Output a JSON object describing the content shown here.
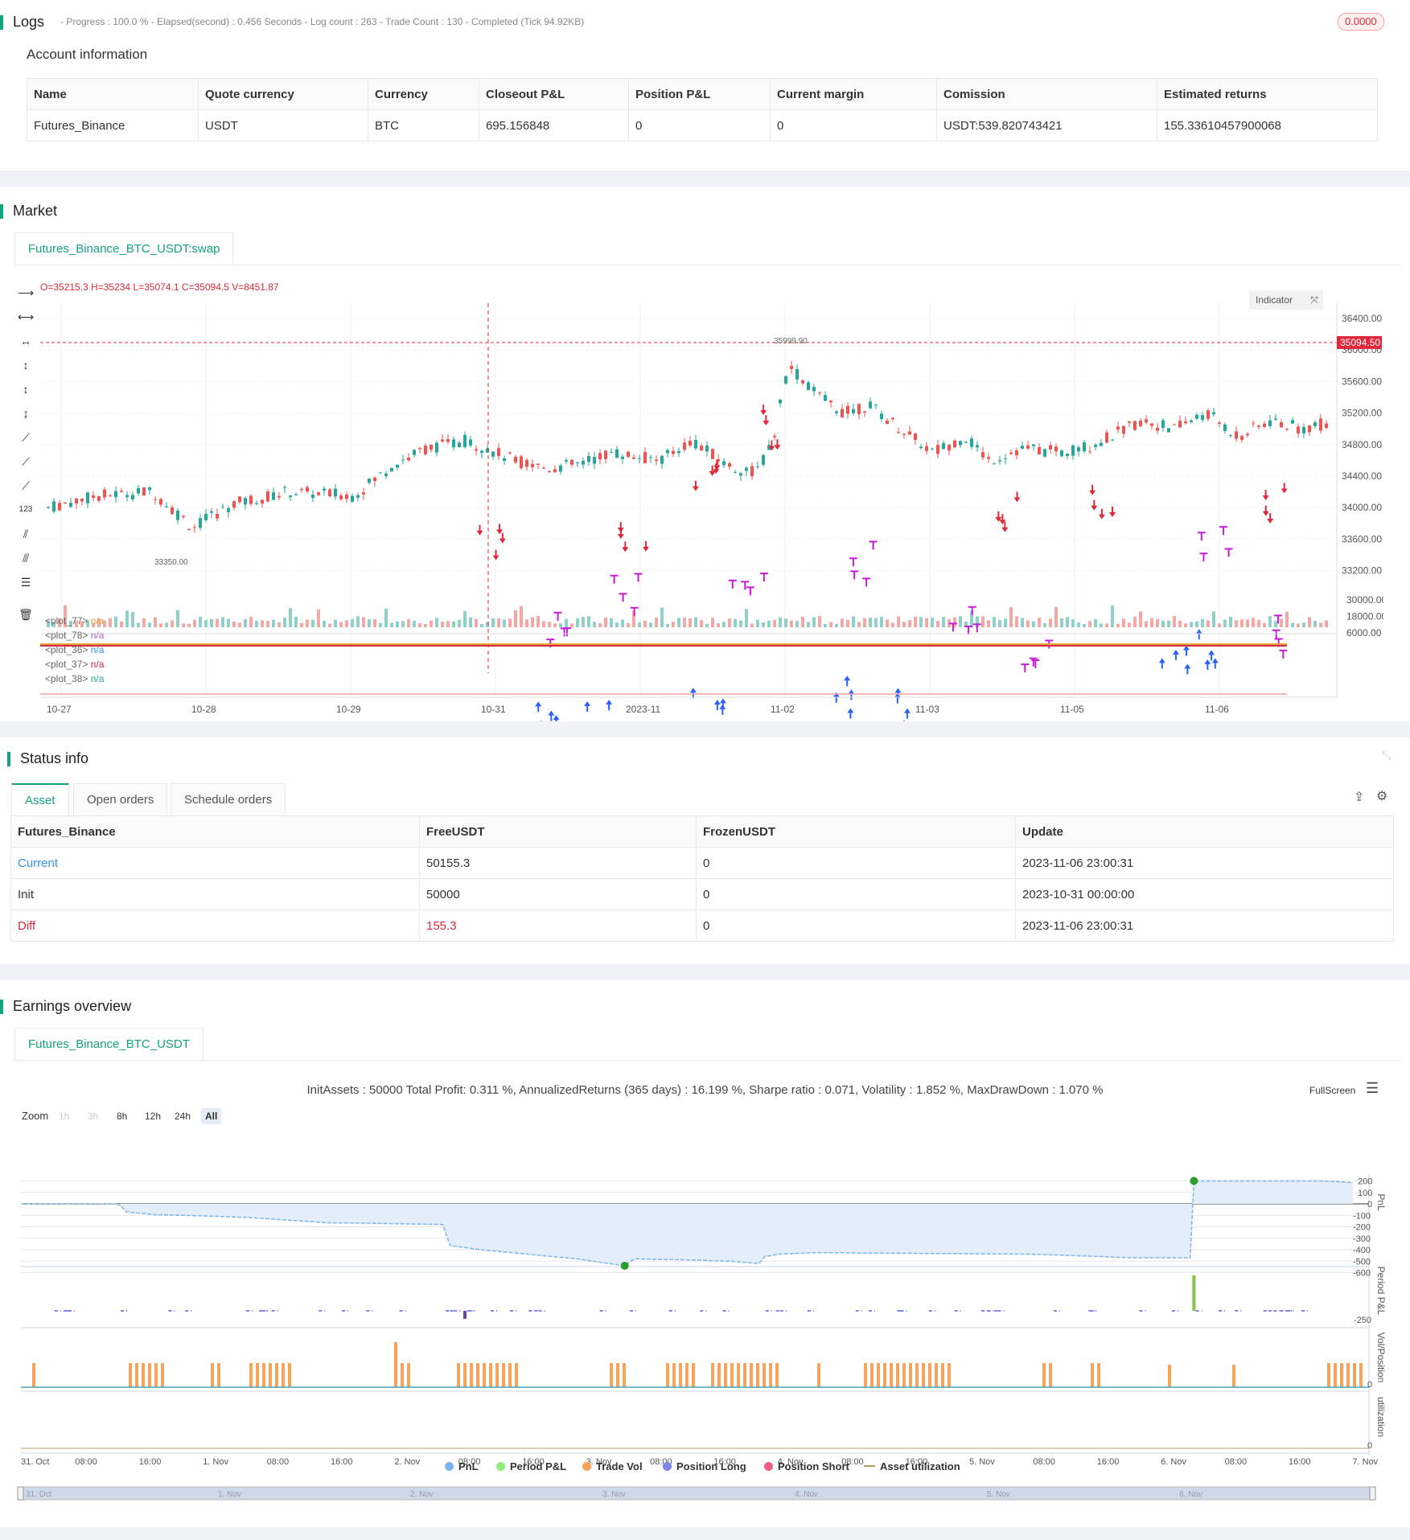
{
  "logs": {
    "title": "Logs",
    "summary": "- Progress : 100.0 % - Elapsed(second) : 0.456  Seconds - Log count : 263 - Trade Count : 130 - Completed (Tick 94.92KB)",
    "badge": "0.0000",
    "account_title": "Account information",
    "columns": [
      "Name",
      "Quote currency",
      "Currency",
      "Closeout P&L",
      "Position P&L",
      "Current margin",
      "Comission",
      "Estimated returns"
    ],
    "row": [
      "Futures_Binance",
      "USDT",
      "BTC",
      "695.156848",
      "0",
      "0",
      "USDT:539.820743421",
      "155.33610457900068"
    ]
  },
  "market": {
    "title": "Market",
    "symbol_tab": "Futures_Binance_BTC_USDT:swap",
    "ohlc": "O=35215.3 H=35234 L=35074.1 C=35094.5 V=8451.87",
    "indicator_btn": "Indicator",
    "last_price": "35094.50",
    "high_label": "35999.90",
    "low_label": "33350.00",
    "price_ticks": [
      "36400.00",
      "36000.00",
      "35600.00",
      "35200.00",
      "34800.00",
      "34400.00",
      "34000.00",
      "33600.00",
      "33200.00"
    ],
    "sub_ticks": [
      "30000.00",
      "18000.00",
      "6000.00"
    ],
    "time_ticks": [
      "10-27",
      "10-28",
      "10-29",
      "10-31",
      "2023-11",
      "11-02",
      "11-03",
      "11-05",
      "11-06"
    ],
    "plots": [
      {
        "name": "<plot_77>",
        "value": "n/a",
        "color": "#e5a23a"
      },
      {
        "name": "<plot_78>",
        "value": "n/a",
        "color": "#b05fd1"
      },
      {
        "name": "<plot_36>",
        "value": "n/a",
        "color": "#3a8ee6"
      },
      {
        "name": "<plot_37>",
        "value": "n/a",
        "color": "#d6284b"
      },
      {
        "name": "<plot_38>",
        "value": "n/a",
        "color": "#26a69a"
      }
    ],
    "colors": {
      "up": "#26a69a",
      "down": "#ef5350",
      "long": "#2962ff",
      "short": "#e0283c",
      "close": "#c51ad6"
    }
  },
  "status": {
    "title": "Status info",
    "tabs": [
      "Asset",
      "Open orders",
      "Schedule orders"
    ],
    "columns": [
      "Futures_Binance",
      "FreeUSDT",
      "FrozenUSDT",
      "Update"
    ],
    "rows": [
      [
        "Current",
        "50155.3",
        "0",
        "2023-11-06 23:00:31"
      ],
      [
        "Init",
        "50000",
        "0",
        "2023-10-31 00:00:00"
      ],
      [
        "Diff",
        "155.3",
        "0",
        "2023-11-06 23:00:31"
      ]
    ]
  },
  "earnings": {
    "title": "Earnings overview",
    "symbol_tab": "Futures_Binance_BTC_USDT",
    "summary": "InitAssets : 50000 Total Profit: 0.311 %, AnnualizedReturns (365 days) : 16.199 %, Sharpe ratio : 0.071, Volatility : 1.852 %, MaxDrawDown : 1.070 %",
    "fullscreen": "FullScreen",
    "zoom_label": "Zoom",
    "zoom_buttons": [
      "1h",
      "3h",
      "8h",
      "12h",
      "24h",
      "All"
    ],
    "pnl_ticks": [
      "200",
      "100",
      "0",
      "-100",
      "-200",
      "-300",
      "-400",
      "-500",
      "-600"
    ],
    "period_tick": "-250",
    "zero_tick": "0",
    "panel_labels": [
      "PnL",
      "Period P&L",
      "Vol/Position",
      "utilization"
    ],
    "x_ticks": [
      "31. Oct",
      "08:00",
      "16:00",
      "1. Nov",
      "08:00",
      "16:00",
      "2. Nov",
      "08:00",
      "16:00",
      "3. Nov",
      "08:00",
      "16:00",
      "4. Nov",
      "08:00",
      "16:00",
      "5. Nov",
      "08:00",
      "16:00",
      "6. Nov",
      "08:00",
      "16:00",
      "7. Nov"
    ],
    "nav_ticks": [
      "31. Oct",
      "1. Nov",
      "2. Nov",
      "3. Nov",
      "4. Nov",
      "5. Nov",
      "6. Nov"
    ],
    "legend": [
      {
        "label": "PnL",
        "color": "#7cb5ec"
      },
      {
        "label": "Period P&L",
        "color": "#90ed7d"
      },
      {
        "label": "Trade Vol",
        "color": "#f7a35c"
      },
      {
        "label": "Position Long",
        "color": "#8085e9"
      },
      {
        "label": "Position Short",
        "color": "#f15c80"
      },
      {
        "label": "Asset utilization",
        "color": "#a8a060"
      }
    ],
    "chart_data": {
      "type": "area",
      "title": "",
      "ylabel": "PnL",
      "ylim": [
        -600,
        200
      ],
      "x": [
        "31. Oct",
        "1. Nov",
        "2. Nov",
        "3. Nov",
        "4. Nov",
        "5. Nov",
        "6. Nov",
        "7. Nov"
      ],
      "series": [
        {
          "name": "PnL",
          "values": [
            0,
            -120,
            -180,
            -540,
            -480,
            -470,
            -470,
            155
          ]
        }
      ]
    }
  }
}
